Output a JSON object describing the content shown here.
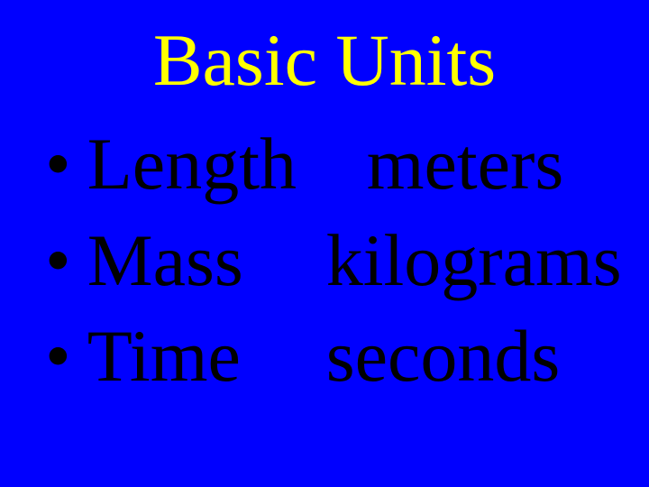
{
  "slide": {
    "title": "Basic Units",
    "items": [
      {
        "quantity": "Length",
        "unit": "meters"
      },
      {
        "quantity": "Mass",
        "unit": "kilograms"
      },
      {
        "quantity": "Time",
        "unit": "seconds"
      }
    ],
    "background_color": "#0000ff",
    "title_color": "#ffff00",
    "body_color": "#000000",
    "title_fontsize": 82,
    "body_fontsize": 82,
    "font_family": "Times New Roman"
  }
}
